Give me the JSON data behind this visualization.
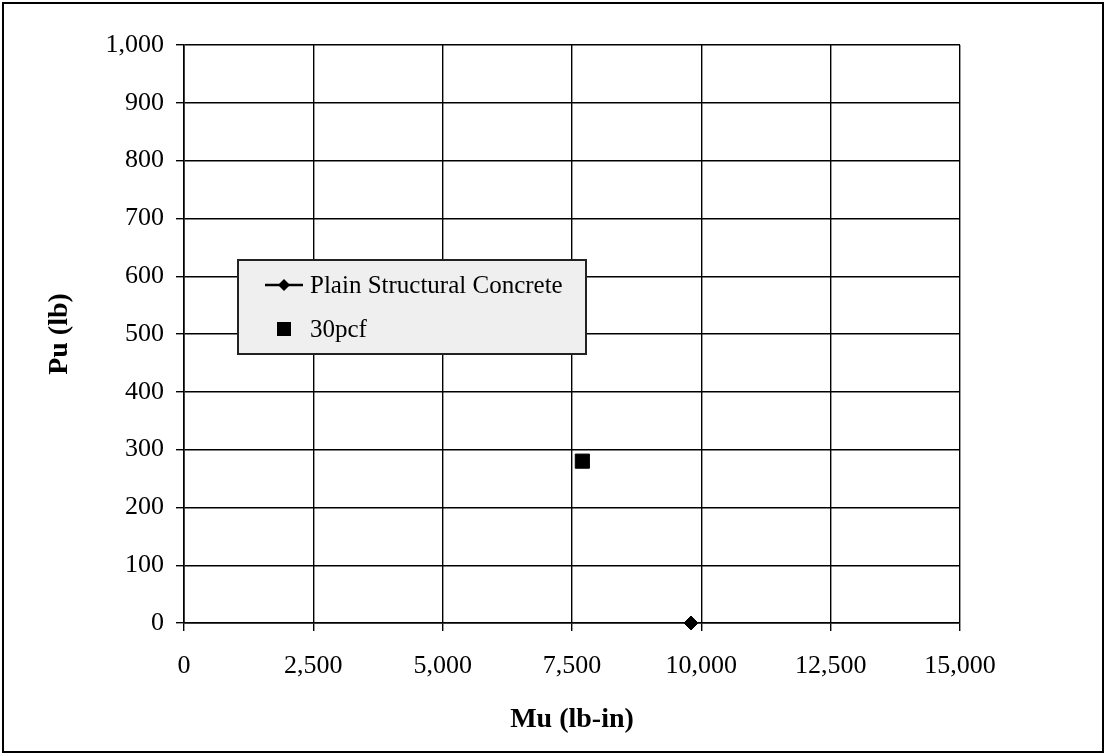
{
  "chart_data": {
    "type": "scatter",
    "xlabel": "Mu (lb-in)",
    "ylabel": "Pu (lb)",
    "xlim": [
      0,
      15000
    ],
    "xticks": [
      0,
      {
        "value": 2500,
        "label": "2,500"
      },
      {
        "value": 5000,
        "label": "5,000"
      },
      {
        "value": 7500,
        "label": "7,500"
      },
      {
        "value": 10000,
        "label": "10,000"
      },
      {
        "value": 12500,
        "label": "12,500"
      },
      {
        "value": 15000,
        "label": "15,000"
      }
    ],
    "ylim": [
      0,
      1000
    ],
    "yticks": [
      0,
      100,
      200,
      300,
      400,
      500,
      600,
      700,
      800,
      900,
      {
        "value": 1000,
        "label": "1,000"
      }
    ],
    "grid": true,
    "legend": "left",
    "series": [
      {
        "name": "Plain Structural Concrete",
        "type": "line",
        "marker": "diamond",
        "color": "#000000",
        "x": [
          9800
        ],
        "values": [
          0
        ]
      },
      {
        "name": "30pcf",
        "type": "scatter",
        "marker": "square",
        "color": "#000000",
        "x": [
          7700
        ],
        "values": [
          280
        ]
      }
    ]
  }
}
